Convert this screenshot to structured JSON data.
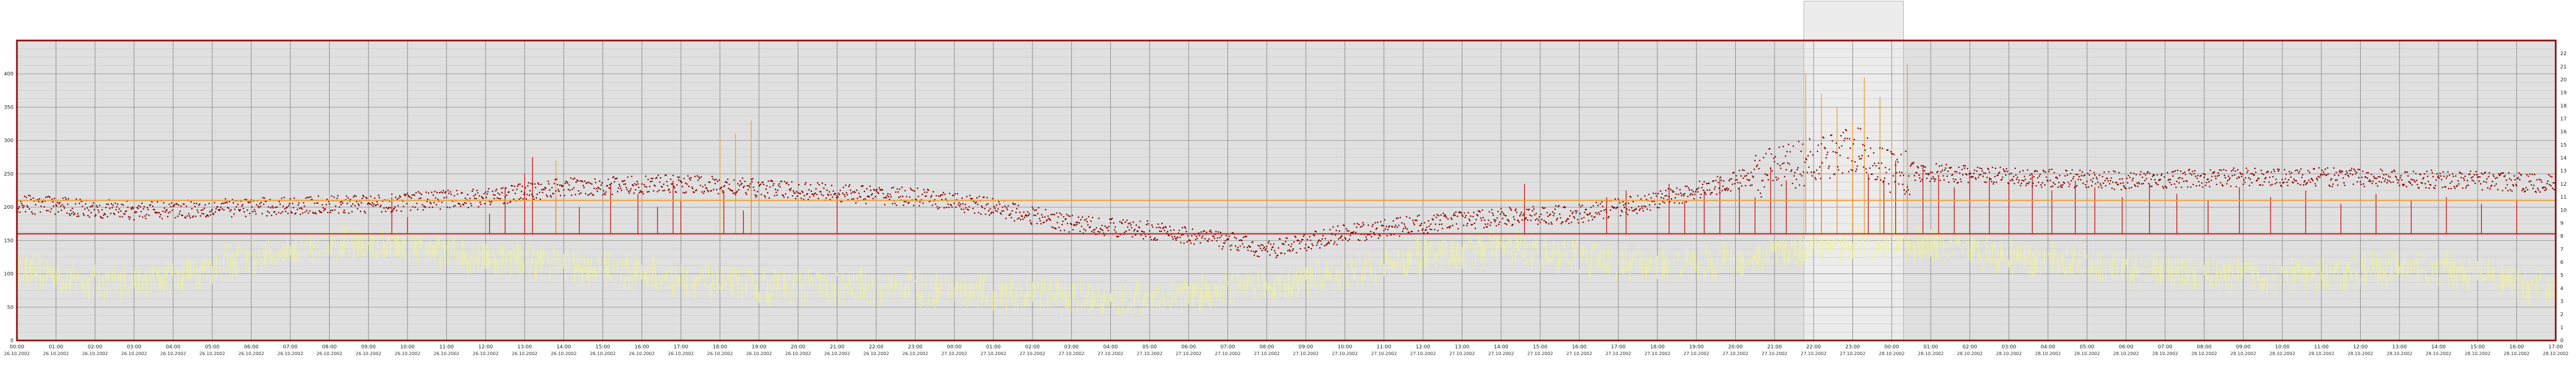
{
  "chart_data": {
    "type": "scatter",
    "title": "",
    "xlabel": "",
    "ylabel": "",
    "ylabel_right": "",
    "grid": true,
    "legend": "none",
    "ylim_left": [
      0,
      450
    ],
    "ylim_right": [
      0,
      23
    ],
    "yticks_left": [
      "0",
      "50",
      "100",
      "150",
      "200",
      "250",
      "300",
      "350",
      "400"
    ],
    "yticks_right": [
      "0",
      "1",
      "2",
      "3",
      "4",
      "5",
      "6",
      "7",
      "8",
      "9",
      "10",
      "11",
      "12",
      "13",
      "14",
      "15",
      "16",
      "17",
      "18",
      "19",
      "20",
      "21",
      "22"
    ],
    "xtick_labels": [
      [
        "00:00",
        "26.10.2002"
      ],
      [
        "01:00",
        "26.10.2002"
      ],
      [
        "02:00",
        "26.10.2002"
      ],
      [
        "03:00",
        "26.10.2002"
      ],
      [
        "04:00",
        "26.10.2002"
      ],
      [
        "05:00",
        "26.10.2002"
      ],
      [
        "06:00",
        "26.10.2002"
      ],
      [
        "07:00",
        "26.10.2002"
      ],
      [
        "08:00",
        "26.10.2002"
      ],
      [
        "09:00",
        "26.10.2002"
      ],
      [
        "10:00",
        "26.10.2002"
      ],
      [
        "11:00",
        "26.10.2002"
      ],
      [
        "12:00",
        "26.10.2002"
      ],
      [
        "13:00",
        "26.10.2002"
      ],
      [
        "14:00",
        "26.10.2002"
      ],
      [
        "15:00",
        "26.10.2002"
      ],
      [
        "16:00",
        "26.10.2002"
      ],
      [
        "17:00",
        "26.10.2002"
      ],
      [
        "18:00",
        "26.10.2002"
      ],
      [
        "19:00",
        "26.10.2002"
      ],
      [
        "20:00",
        "26.10.2002"
      ],
      [
        "21:00",
        "26.10.2002"
      ],
      [
        "22:00",
        "26.10.2002"
      ],
      [
        "23:00",
        "26.10.2002"
      ],
      [
        "00:00",
        "27.10.2002"
      ],
      [
        "01:00",
        "27.10.2002"
      ],
      [
        "02:00",
        "27.10.2002"
      ],
      [
        "03:00",
        "27.10.2002"
      ],
      [
        "04:00",
        "27.10.2002"
      ],
      [
        "05:00",
        "27.10.2002"
      ],
      [
        "06:00",
        "27.10.2002"
      ],
      [
        "07:00",
        "27.10.2002"
      ],
      [
        "08:00",
        "27.10.2002"
      ],
      [
        "09:00",
        "27.10.2002"
      ],
      [
        "10:00",
        "27.10.2002"
      ],
      [
        "11:00",
        "27.10.2002"
      ],
      [
        "12:00",
        "27.10.2002"
      ],
      [
        "13:00",
        "27.10.2002"
      ],
      [
        "14:00",
        "27.10.2002"
      ],
      [
        "15:00",
        "27.10.2002"
      ],
      [
        "16:00",
        "27.10.2002"
      ],
      [
        "17:00",
        "27.10.2002"
      ],
      [
        "18:00",
        "27.10.2002"
      ],
      [
        "19:00",
        "27.10.2002"
      ],
      [
        "20:00",
        "27.10.2002"
      ],
      [
        "21:00",
        "27.10.2002"
      ],
      [
        "22:00",
        "27.10.2002"
      ],
      [
        "23:00",
        "27.10.2002"
      ],
      [
        "00:00",
        "28.10.2002"
      ],
      [
        "01:00",
        "28.10.2002"
      ],
      [
        "02:00",
        "28.10.2002"
      ],
      [
        "03:00",
        "28.10.2002"
      ],
      [
        "04:00",
        "28.10.2002"
      ],
      [
        "05:00",
        "28.10.2002"
      ],
      [
        "06:00",
        "28.10.2002"
      ],
      [
        "07:00",
        "28.10.2002"
      ],
      [
        "08:00",
        "28.10.2002"
      ],
      [
        "09:00",
        "28.10.2002"
      ],
      [
        "10:00",
        "28.10.2002"
      ],
      [
        "11:00",
        "28.10.2002"
      ],
      [
        "12:00",
        "28.10.2002"
      ],
      [
        "13:00",
        "28.10.2002"
      ],
      [
        "14:00",
        "28.10.2002"
      ],
      [
        "15:00",
        "28.10.2002"
      ],
      [
        "16:00",
        "28.10.2002"
      ],
      [
        "17:00",
        "28.10.2002"
      ]
    ],
    "threshold_lines_left": [
      {
        "value": 210,
        "color": "#e8a040"
      },
      {
        "value": 160,
        "color": "#cc1111"
      }
    ],
    "highlight_window_hours": [
      45.75,
      48.3
    ],
    "series": [
      {
        "kind": "points",
        "color": "#8b0000",
        "profile_hours": [
          0,
          3,
          6,
          9,
          12,
          14,
          17,
          20,
          23,
          25,
          27,
          29,
          31,
          32,
          34,
          36,
          38,
          40,
          42,
          44,
          46,
          47,
          48,
          51,
          54,
          57,
          60,
          63,
          65
        ],
        "profile_values": [
          205,
          195,
          200,
          205,
          215,
          230,
          235,
          225,
          215,
          200,
          175,
          165,
          150,
          135,
          160,
          175,
          185,
          190,
          210,
          240,
          270,
          290,
          255,
          245,
          240,
          245,
          245,
          240,
          235
        ]
      },
      {
        "kind": "band",
        "color": "#f2f296",
        "profile_hours": [
          0,
          2,
          4,
          6,
          8,
          10,
          12,
          14,
          16,
          18,
          20,
          22,
          24,
          26,
          28,
          30,
          32,
          34,
          36,
          38,
          40,
          42,
          44,
          46,
          48,
          50,
          52,
          54,
          56,
          58,
          60,
          62,
          64,
          65
        ],
        "profile_values": [
          110,
          85,
          95,
          125,
          145,
          140,
          125,
          115,
          100,
          85,
          80,
          80,
          75,
          70,
          60,
          70,
          80,
          100,
          125,
          140,
          125,
          110,
          120,
          140,
          150,
          135,
          120,
          105,
          100,
          95,
          105,
          110,
          85,
          75
        ]
      },
      {
        "kind": "spikes",
        "color": "#d01010",
        "base": 160,
        "spike_hours": [
          9.6,
          10.0,
          12.1,
          12.5,
          13.0,
          13.2,
          13.8,
          14.4,
          15.2,
          15.9,
          16.4,
          16.8,
          17.0,
          18.1,
          18.6,
          18.8,
          21.0,
          38.6,
          40.7,
          41.2,
          42.3,
          42.7,
          43.2,
          43.6,
          44.1,
          44.5,
          44.9,
          45.3,
          45.8,
          46.2,
          46.6,
          47.0,
          47.4,
          47.8,
          48.1,
          48.4,
          48.8,
          49.2,
          49.6,
          50.0,
          50.5,
          51.0,
          51.6,
          52.1,
          52.7,
          53.2,
          53.9,
          54.6,
          55.3,
          56.1,
          56.9,
          57.7,
          58.6,
          59.5,
          60.4,
          61.3,
          62.2,
          63.1,
          64.0
        ],
        "spike_values": [
          215,
          185,
          190,
          230,
          250,
          275,
          215,
          200,
          235,
          220,
          200,
          240,
          210,
          225,
          195,
          235,
          215,
          235,
          215,
          225,
          235,
          210,
          225,
          245,
          230,
          215,
          260,
          240,
          255,
          270,
          245,
          265,
          250,
          240,
          270,
          235,
          260,
          245,
          230,
          255,
          245,
          235,
          250,
          225,
          240,
          230,
          215,
          235,
          220,
          210,
          230,
          215,
          225,
          205,
          220,
          210,
          215,
          205,
          210
        ]
      },
      {
        "kind": "spikes",
        "color": "#f0a030",
        "base": 160,
        "spike_hours": [
          13.8,
          18.0,
          18.4,
          18.8,
          45.8,
          46.2,
          46.6,
          47.0,
          47.3,
          47.7,
          48.0,
          48.4
        ],
        "spike_values": [
          270,
          305,
          310,
          330,
          400,
          370,
          350,
          330,
          395,
          365,
          360,
          415
        ]
      }
    ]
  }
}
